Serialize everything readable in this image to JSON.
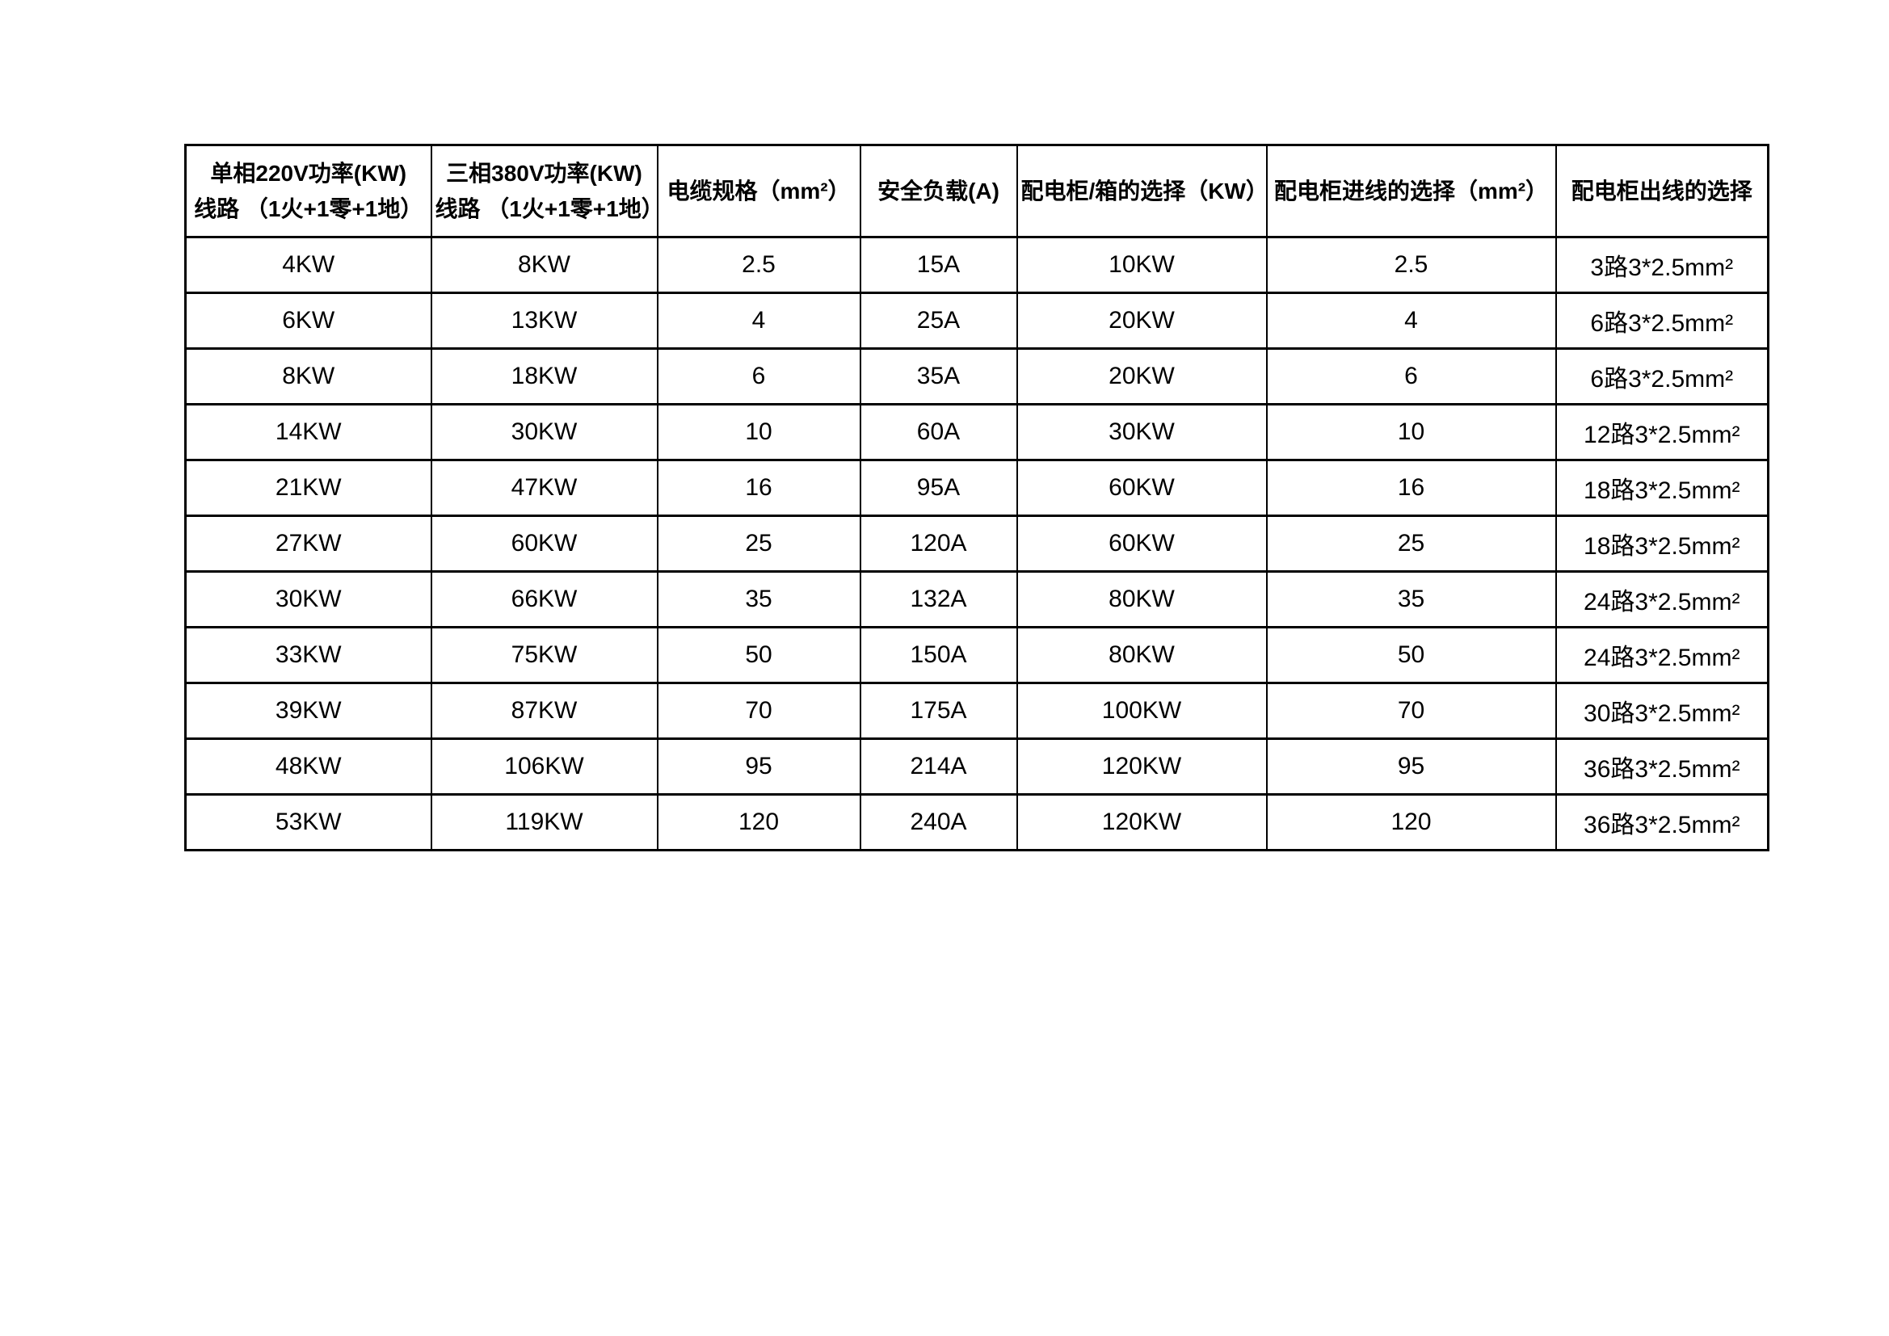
{
  "page": {
    "background_color": "#ffffff",
    "border_color": "#000000",
    "text_color": "#000000"
  },
  "table": {
    "headers": [
      "单相220V功率(KW)\n线路 （1火+1零+1地）",
      "三相380V功率(KW)\n线路 （1火+1零+1地）",
      "电缆规格（mm²）",
      "安全负载(A)",
      "配电柜/箱的选择（KW）",
      "配电柜进线的选择（mm²）",
      "配电柜出线的选择",
      "配电柜出线的选择"
    ],
    "rows": [
      [
        "4KW",
        "8KW",
        "2.5",
        "15A",
        "10KW",
        "2.5",
        "3路3*2.5mm²"
      ],
      [
        "6KW",
        "13KW",
        "4",
        "25A",
        "20KW",
        "4",
        "6路3*2.5mm²"
      ],
      [
        "8KW",
        "18KW",
        "6",
        "35A",
        "20KW",
        "6",
        "6路3*2.5mm²"
      ],
      [
        "14KW",
        "30KW",
        "10",
        "60A",
        "30KW",
        "10",
        "12路3*2.5mm²"
      ],
      [
        "21KW",
        "47KW",
        "16",
        "95A",
        "60KW",
        "16",
        "18路3*2.5mm²"
      ],
      [
        "27KW",
        "60KW",
        "25",
        "120A",
        "60KW",
        "25",
        "18路3*2.5mm²"
      ],
      [
        "30KW",
        "66KW",
        "35",
        "132A",
        "80KW",
        "35",
        "24路3*2.5mm²"
      ],
      [
        "33KW",
        "75KW",
        "50",
        "150A",
        "80KW",
        "50",
        "24路3*2.5mm²"
      ],
      [
        "39KW",
        "87KW",
        "70",
        "175A",
        "100KW",
        "70",
        "30路3*2.5mm²"
      ],
      [
        "48KW",
        "106KW",
        "95",
        "214A",
        "120KW",
        "95",
        "36路3*2.5mm²"
      ],
      [
        "53KW",
        "119KW",
        "120",
        "240A",
        "120KW",
        "120",
        "36路3*2.5mm²"
      ]
    ]
  }
}
